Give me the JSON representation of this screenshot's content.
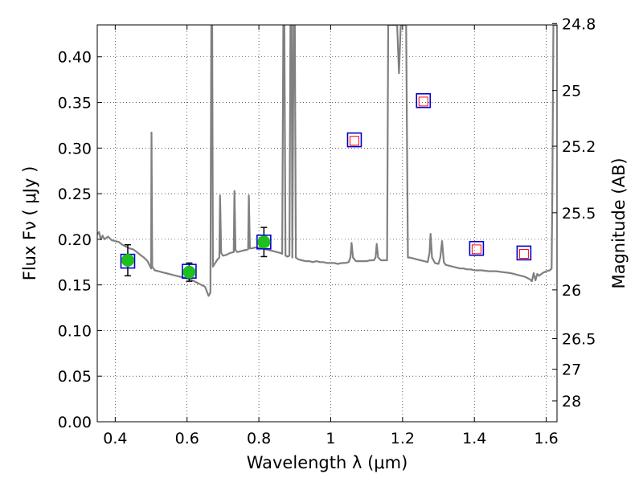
{
  "chart_data": {
    "type": "scatter",
    "xlabel": "Wavelength  λ (μm)",
    "ylabel": "Flux  Fν  ( μJy )",
    "y2label": "Magnitude (AB)",
    "xlim": [
      0.35,
      1.63
    ],
    "ylim": [
      0.0,
      0.435
    ],
    "x_ticks": [
      0.4,
      0.6,
      0.8,
      1.0,
      1.2,
      1.4,
      1.6
    ],
    "x_tick_labels": [
      "0.4",
      "0.6",
      "0.8",
      "1",
      "1.2",
      "1.4",
      "1.6"
    ],
    "y_ticks": [
      0.0,
      0.05,
      0.1,
      0.15,
      0.2,
      0.25,
      0.3,
      0.35,
      0.4
    ],
    "y_tick_labels": [
      "0.00",
      "0.05",
      "0.10",
      "0.15",
      "0.20",
      "0.25",
      "0.30",
      "0.35",
      "0.40"
    ],
    "y2_ticks": [
      24.8,
      25.0,
      25.2,
      25.5,
      26.0,
      26.5,
      27.0,
      28.0
    ],
    "y2_tick_labels": [
      "24.8",
      "25",
      "25.2",
      "25.5",
      "26",
      "26.5",
      "27",
      "28"
    ],
    "grid": true,
    "colors": {
      "template": "#808080",
      "observed_marker": "#1fbf1f",
      "model_box": "#0000cc",
      "predicted_marker": "#ff0000",
      "errorbar": "#000000"
    },
    "observed_points": [
      {
        "x": 0.435,
        "y": 0.177,
        "yerr": 0.017
      },
      {
        "x": 0.606,
        "y": 0.164,
        "yerr": 0.01
      },
      {
        "x": 0.814,
        "y": 0.197,
        "yerr": 0.016
      }
    ],
    "model_boxes": [
      {
        "x": 0.435,
        "y": 0.176
      },
      {
        "x": 0.606,
        "y": 0.165
      },
      {
        "x": 0.814,
        "y": 0.197
      },
      {
        "x": 1.066,
        "y": 0.309
      },
      {
        "x": 1.258,
        "y": 0.352
      },
      {
        "x": 1.406,
        "y": 0.19
      },
      {
        "x": 1.538,
        "y": 0.185
      }
    ],
    "predicted_points": [
      {
        "x": 1.066,
        "y": 0.308
      },
      {
        "x": 1.258,
        "y": 0.351
      },
      {
        "x": 1.406,
        "y": 0.189
      },
      {
        "x": 1.538,
        "y": 0.184
      }
    ],
    "template_spectrum": [
      [
        0.35,
        0.205
      ],
      [
        0.355,
        0.208
      ],
      [
        0.36,
        0.2
      ],
      [
        0.365,
        0.204
      ],
      [
        0.37,
        0.2
      ],
      [
        0.38,
        0.203
      ],
      [
        0.39,
        0.199
      ],
      [
        0.4,
        0.198
      ],
      [
        0.41,
        0.197
      ],
      [
        0.42,
        0.194
      ],
      [
        0.43,
        0.192
      ],
      [
        0.44,
        0.19
      ],
      [
        0.45,
        0.189
      ],
      [
        0.46,
        0.186
      ],
      [
        0.47,
        0.183
      ],
      [
        0.48,
        0.18
      ],
      [
        0.49,
        0.176
      ],
      [
        0.495,
        0.172
      ],
      [
        0.5,
        0.168
      ],
      [
        0.501,
        0.317
      ],
      [
        0.503,
        0.17
      ],
      [
        0.51,
        0.166
      ],
      [
        0.52,
        0.165
      ],
      [
        0.53,
        0.164
      ],
      [
        0.54,
        0.163
      ],
      [
        0.55,
        0.162
      ],
      [
        0.56,
        0.161
      ],
      [
        0.57,
        0.16
      ],
      [
        0.58,
        0.159
      ],
      [
        0.59,
        0.158
      ],
      [
        0.6,
        0.157
      ],
      [
        0.61,
        0.156
      ],
      [
        0.62,
        0.154
      ],
      [
        0.63,
        0.152
      ],
      [
        0.64,
        0.15
      ],
      [
        0.65,
        0.148
      ],
      [
        0.655,
        0.143
      ],
      [
        0.66,
        0.138
      ],
      [
        0.662,
        0.139
      ],
      [
        0.665,
        0.142
      ],
      [
        0.6675,
        0.435
      ],
      [
        0.67,
        0.435
      ],
      [
        0.672,
        0.17
      ],
      [
        0.675,
        0.172
      ],
      [
        0.68,
        0.175
      ],
      [
        0.685,
        0.178
      ],
      [
        0.69,
        0.18
      ],
      [
        0.692,
        0.248
      ],
      [
        0.695,
        0.185
      ],
      [
        0.7,
        0.182
      ],
      [
        0.71,
        0.183
      ],
      [
        0.72,
        0.185
      ],
      [
        0.73,
        0.186
      ],
      [
        0.732,
        0.253
      ],
      [
        0.735,
        0.188
      ],
      [
        0.74,
        0.186
      ],
      [
        0.75,
        0.187
      ],
      [
        0.76,
        0.188
      ],
      [
        0.77,
        0.189
      ],
      [
        0.772,
        0.248
      ],
      [
        0.775,
        0.19
      ],
      [
        0.78,
        0.19
      ],
      [
        0.79,
        0.191
      ],
      [
        0.8,
        0.191
      ],
      [
        0.81,
        0.19
      ],
      [
        0.82,
        0.189
      ],
      [
        0.83,
        0.188
      ],
      [
        0.84,
        0.187
      ],
      [
        0.85,
        0.186
      ],
      [
        0.86,
        0.185
      ],
      [
        0.865,
        0.184
      ],
      [
        0.868,
        0.435
      ],
      [
        0.871,
        0.435
      ],
      [
        0.874,
        0.182
      ],
      [
        0.88,
        0.181
      ],
      [
        0.885,
        0.182
      ],
      [
        0.888,
        0.435
      ],
      [
        0.891,
        0.435
      ],
      [
        0.893,
        0.18
      ],
      [
        0.897,
        0.435
      ],
      [
        0.9,
        0.435
      ],
      [
        0.903,
        0.18
      ],
      [
        0.91,
        0.178
      ],
      [
        0.92,
        0.177
      ],
      [
        0.93,
        0.176
      ],
      [
        0.94,
        0.176
      ],
      [
        0.95,
        0.175
      ],
      [
        0.96,
        0.176
      ],
      [
        0.97,
        0.175
      ],
      [
        0.98,
        0.175
      ],
      [
        0.99,
        0.174
      ],
      [
        1.0,
        0.174
      ],
      [
        1.01,
        0.174
      ],
      [
        1.02,
        0.173
      ],
      [
        1.03,
        0.174
      ],
      [
        1.04,
        0.174
      ],
      [
        1.05,
        0.175
      ],
      [
        1.055,
        0.18
      ],
      [
        1.058,
        0.196
      ],
      [
        1.062,
        0.18
      ],
      [
        1.07,
        0.176
      ],
      [
        1.08,
        0.176
      ],
      [
        1.09,
        0.176
      ],
      [
        1.1,
        0.176
      ],
      [
        1.11,
        0.177
      ],
      [
        1.12,
        0.177
      ],
      [
        1.125,
        0.18
      ],
      [
        1.128,
        0.195
      ],
      [
        1.132,
        0.18
      ],
      [
        1.14,
        0.177
      ],
      [
        1.15,
        0.177
      ],
      [
        1.157,
        0.177
      ],
      [
        1.16,
        0.435
      ],
      [
        1.185,
        0.435
      ],
      [
        1.19,
        0.382
      ],
      [
        1.195,
        0.435
      ],
      [
        1.21,
        0.435
      ],
      [
        1.215,
        0.18
      ],
      [
        1.22,
        0.18
      ],
      [
        1.23,
        0.179
      ],
      [
        1.24,
        0.178
      ],
      [
        1.25,
        0.177
      ],
      [
        1.26,
        0.176
      ],
      [
        1.27,
        0.175
      ],
      [
        1.275,
        0.185
      ],
      [
        1.278,
        0.206
      ],
      [
        1.282,
        0.18
      ],
      [
        1.29,
        0.174
      ],
      [
        1.3,
        0.173
      ],
      [
        1.305,
        0.18
      ],
      [
        1.31,
        0.198
      ],
      [
        1.315,
        0.175
      ],
      [
        1.32,
        0.172
      ],
      [
        1.33,
        0.171
      ],
      [
        1.34,
        0.17
      ],
      [
        1.35,
        0.169
      ],
      [
        1.36,
        0.168
      ],
      [
        1.37,
        0.168
      ],
      [
        1.38,
        0.167
      ],
      [
        1.39,
        0.167
      ],
      [
        1.4,
        0.166
      ],
      [
        1.42,
        0.166
      ],
      [
        1.44,
        0.165
      ],
      [
        1.46,
        0.165
      ],
      [
        1.48,
        0.164
      ],
      [
        1.5,
        0.163
      ],
      [
        1.51,
        0.162
      ],
      [
        1.52,
        0.161
      ],
      [
        1.53,
        0.16
      ],
      [
        1.54,
        0.159
      ],
      [
        1.55,
        0.157
      ],
      [
        1.555,
        0.156
      ],
      [
        1.56,
        0.154
      ],
      [
        1.565,
        0.163
      ],
      [
        1.57,
        0.155
      ],
      [
        1.575,
        0.162
      ],
      [
        1.58,
        0.16
      ],
      [
        1.59,
        0.163
      ],
      [
        1.6,
        0.165
      ],
      [
        1.61,
        0.166
      ],
      [
        1.615,
        0.168
      ],
      [
        1.617,
        0.25
      ],
      [
        1.62,
        0.435
      ],
      [
        1.63,
        0.435
      ]
    ]
  }
}
